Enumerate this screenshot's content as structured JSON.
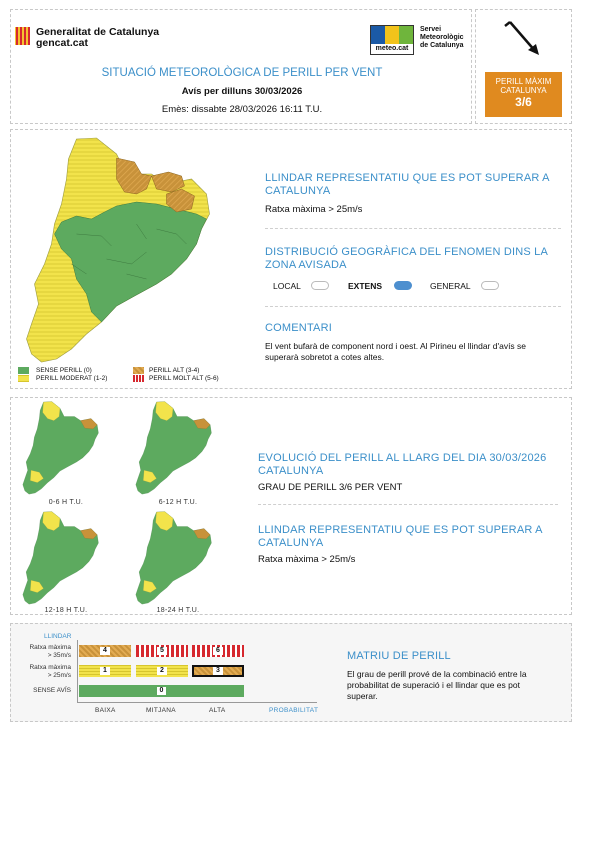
{
  "header": {
    "gencat_name": "Generalitat de Catalunya",
    "gencat_domain": "gencat.cat",
    "smc_logo_text": "meteo.cat",
    "smc_line1": "Servei",
    "smc_line2": "Meteorològic",
    "smc_line3": "de Catalunya",
    "title": "SITUACIÓ METEOROLÒGICA DE PERILL PER VENT",
    "subtitle": "Avís per dilluns 30/03/2026",
    "issued": "Emès: dissabte 28/03/2026 16:11 T.U.",
    "max_label_line1": "PERILL MÀXIM",
    "max_label_line2": "CATALUNYA",
    "max_value": "3/6",
    "wind_icon": "wind-direction-arrow-icon"
  },
  "section1": {
    "threshold_title": "LLINDAR REPRESENTATIU QUE ES POT SUPERAR A CATALUNYA",
    "threshold_value": "Ratxa màxima > 25m/s",
    "distribution_title": "DISTRIBUCIÓ GEOGRÀFICA DEL FENOMEN DINS LA ZONA AVISADA",
    "dist_options": [
      {
        "label": "LOCAL",
        "active": false
      },
      {
        "label": "EXTENS",
        "active": true
      },
      {
        "label": "GENERAL",
        "active": false
      }
    ],
    "comments_title": "COMENTARI",
    "comments_text": "El vent bufarà de component nord i oest. Al Pirineu el llindar d'avís se superarà sobretot a cotes altes.",
    "legend": [
      {
        "label": "SENSE PERILL (0)",
        "color": "#5daa5f"
      },
      {
        "label": "PERILL MODERAT (1-2)",
        "color": "#f2e34b"
      },
      {
        "label": "PERILL ALT (3-4)",
        "color": "#c8923a"
      },
      {
        "label": "PERILL MOLT ALT (5-6)",
        "color": "#d6282e"
      }
    ]
  },
  "section2": {
    "evolution_title": "EVOLUCIÓ DEL PERILL AL LLARG DEL DIA 30/03/2026 CATALUNYA",
    "evolution_value": "GRAU DE PERILL 3/6 PER VENT",
    "threshold_title": "LLINDAR REPRESENTATIU QUE ES POT SUPERAR A CATALUNYA",
    "threshold_value": "Ratxa màxima > 25m/s",
    "periods": [
      "0-6 H T.U.",
      "6-12 H T.U.",
      "12-18 H T.U.",
      "18-24 H T.U."
    ]
  },
  "matrix": {
    "threshold_header": "LLINDAR",
    "row1_line1": "Ratxa màxima",
    "row1_line2": "> 35m/s",
    "row2_line1": "Ratxa màxima",
    "row2_line2": "> 25m/s",
    "row3": "SENSE AVÍS",
    "cells": {
      "r1c1": "4",
      "r1c2": "5",
      "r1c3": "6",
      "r2c1": "1",
      "r2c2": "2",
      "r2c3": "3",
      "r3": "0"
    },
    "x_labels": [
      "BAIXA",
      "MITJANA",
      "ALTA"
    ],
    "x_axis_title": "PROBABILITAT",
    "title": "MATRIU DE PERILL",
    "text": "El grau de perill prové de la combinació entre la probabilitat de superació i el llindar que es pot superar."
  }
}
